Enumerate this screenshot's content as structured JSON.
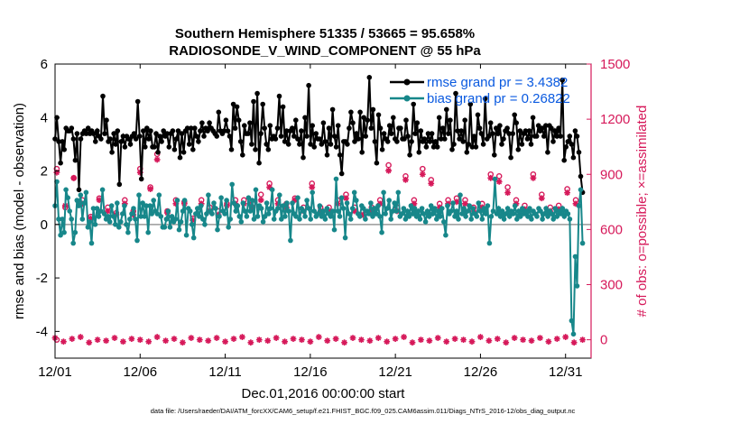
{
  "chart_data": {
    "type": "line",
    "title_line1": "Southern Hemisphere 51335 / 53665 = 95.658%",
    "title_line2": "RADIOSONDE_V_WIND_COMPONENT @ 55 hPa",
    "xlabel": "Dec.01,2016 00:00:00 start",
    "ylabel_left": "rmse and bias (model - observation)",
    "ylabel_right": "# of obs: o=possible; ×=assimilated",
    "footer": "data file: /Users/raeder/DAI/ATM_forcXX/CAM6_setup/f.e21.FHIST_BGC.f09_025.CAM6assim.011/Diags_NTrS_2016-12/obs_diag_output.nc",
    "xlim": [
      0,
      31.5
    ],
    "ylim_left": [
      -5,
      6
    ],
    "ylim_right": [
      -100,
      1500
    ],
    "x_ticks": [
      0,
      5,
      10,
      15,
      20,
      25,
      30
    ],
    "x_tick_labels": [
      "12/01",
      "12/06",
      "12/11",
      "12/16",
      "12/21",
      "12/26",
      "12/31"
    ],
    "y_left_ticks": [
      6,
      4,
      2,
      0,
      -2,
      -4
    ],
    "y_left_tick_labels": [
      "6",
      "4",
      "2",
      "0",
      "-2",
      "-4"
    ],
    "y_right_ticks": [
      1500,
      1200,
      900,
      600,
      300,
      0
    ],
    "y_right_tick_labels": [
      "1500",
      "1200",
      "900",
      "600",
      "300",
      "0"
    ],
    "colors": {
      "rmse": "#000000",
      "bias": "#17878a",
      "obs": "#d6195a",
      "zero": "#9a9a9a"
    },
    "series": [
      {
        "name": "rmse",
        "legend": "rmse grand pr = 3.4382",
        "axis": "left",
        "values": [
          3.2,
          4.0,
          3.1,
          2.3,
          3.1,
          2.8,
          3.6,
          3.5,
          3.5,
          3.6,
          3.2,
          2.4,
          3.4,
          1.3,
          3.2,
          3.4,
          3.5,
          3.4,
          3.6,
          3.4,
          3.5,
          3.4,
          3.1,
          3.5,
          3.3,
          3.2,
          4.8,
          3.4,
          3.9,
          3.1,
          3.2,
          2.7,
          3.4,
          3.0,
          3.5,
          1.5,
          3.1,
          3.3,
          2.9,
          3.3,
          3.2,
          3.0,
          3.3,
          3.4,
          3.2,
          4.6,
          3.3,
          1.7,
          3.5,
          2.9,
          3.6,
          3.2,
          3.5,
          2.9,
          2.9,
          3.4,
          2.7,
          3.3,
          3.1,
          3.5,
          3.3,
          3.4,
          2.9,
          3.4,
          3.5,
          2.8,
          3.2,
          3.5,
          2.5,
          3.4,
          2.7,
          3.5,
          3.6,
          3.0,
          3.6,
          2.8,
          3.6,
          3.3,
          3.1,
          3.5,
          3.8,
          3.3,
          3.6,
          3.5,
          3.8,
          3.6,
          3.5,
          3.4,
          3.3,
          4.2,
          3.5,
          3.4,
          3.5,
          3.9,
          3.5,
          3.3,
          2.8,
          4.5,
          3.6,
          4.4,
          3.9,
          3.1,
          2.6,
          3.7,
          3.4,
          3.4,
          3.8,
          3.0,
          4.6,
          2.8,
          4.9,
          2.3,
          3.4,
          4.5,
          3.6,
          3.0,
          2.8,
          3.7,
          3.2,
          3.3,
          3.2,
          3.6,
          4.8,
          3.3,
          4.4,
          3.1,
          3.5,
          3.0,
          3.5,
          3.6,
          3.3,
          3.9,
          3.2,
          3.0,
          3.5,
          2.5,
          4.0,
          3.3,
          5.2,
          3.0,
          3.7,
          2.9,
          3.4,
          3.2,
          3.2,
          3.0,
          3.8,
          3.1,
          2.6,
          3.6,
          3.0,
          4.3,
          3.3,
          2.9,
          3.7,
          2.6,
          1.9,
          3.1,
          3.1,
          3.0,
          3.6,
          4.2,
          3.8,
          3.1,
          3.4,
          3.2,
          4.2,
          2.7,
          4.0,
          3.3,
          3.9,
          5.5,
          3.6,
          4.3,
          3.1,
          2.3,
          4.1,
          3.6,
          2.8,
          3.4,
          3.2,
          3.1,
          3.7,
          3.4,
          4.0,
          3.2,
          3.1,
          3.6,
          3.6,
          3.2,
          3.2,
          3.9,
          3.3,
          2.6,
          3.1,
          4.5,
          3.4,
          3.8,
          2.7,
          3.5,
          3.1,
          3.2,
          2.9,
          3.4,
          3.1,
          3.4,
          2.9,
          3.1,
          2.9,
          4.0,
          3.2,
          3.6,
          3.2,
          4.3,
          3.4,
          3.9,
          2.8,
          3.0,
          4.9,
          3.5,
          3.2,
          3.5,
          3.1,
          3.9,
          2.7,
          3.0,
          4.5,
          2.9,
          3.3,
          2.9,
          4.1,
          3.6,
          3.4,
          3.0,
          4.7,
          3.2,
          3.3,
          3.8,
          3.4,
          2.6,
          3.6,
          3.4,
          3.7,
          3.0,
          3.2,
          3.5,
          3.6,
          3.4,
          2.5,
          3.4,
          4.1,
          3.8,
          2.8,
          3.5,
          3.0,
          3.4,
          3.5,
          3.2,
          3.5,
          3.0,
          4.0,
          3.3,
          3.3,
          3.7,
          3.5,
          3.6,
          3.3,
          3.7,
          2.7,
          3.7,
          3.6,
          3.1,
          3.5,
          3.3,
          3.6,
          3.3,
          5.4,
          2.4,
          2.9,
          3.1,
          3.3,
          3.0,
          2.5,
          3.5,
          3.3,
          2.7,
          1.8,
          1.2
        ],
        "xstep": 0.5
      },
      {
        "name": "bias",
        "legend": "bias grand pr = 0.26822",
        "axis": "left",
        "values": [
          0.7,
          1.6,
          0.2,
          -0.4,
          0.2,
          -0.3,
          1.3,
          1.0,
          0.5,
          0.2,
          -0.7,
          -0.3,
          0.9,
          0.7,
          1.1,
          0.2,
          0.8,
          1.2,
          -0.1,
          0.1,
          -0.7,
          0.6,
          0.0,
          0.6,
          0.3,
          0.5,
          1.3,
          0.4,
          0.2,
          0.3,
          0.1,
          0.7,
          0.3,
          0.0,
          0.8,
          -0.1,
          0.1,
          0.4,
          0.7,
          0.0,
          -0.3,
          0.2,
          0.4,
          0.6,
          0.2,
          -0.6,
          1.1,
          0.3,
          0.8,
          0.3,
          0.7,
          -0.3,
          0.7,
          0.4,
          0.9,
          0.5,
          0.4,
          1.1,
          0.3,
          -0.1,
          -0.1,
          0.2,
          0.5,
          -0.1,
          0.3,
          0.1,
          0.2,
          0.9,
          -0.2,
          0.1,
          0.5,
          0.9,
          -0.4,
          0.6,
          0.5,
          0.0,
          -0.5,
          0.4,
          0.6,
          0.3,
          0.7,
          0.2,
          0.0,
          0.4,
          1.1,
          0.5,
          0.4,
          0.8,
          0.6,
          -0.2,
          0.3,
          1.0,
          0.5,
          0.4,
          0.9,
          -0.1,
          0.2,
          1.5,
          0.8,
          0.5,
          0.7,
          0.3,
          0.1,
          0.8,
          0.5,
          0.3,
          1.0,
          0.5,
          0.9,
          0.2,
          1.3,
          0.3,
          0.7,
          0.6,
          0.1,
          0.3,
          0.8,
          0.4,
          0.6,
          1.3,
          0.2,
          0.5,
          0.6,
          1.1,
          0.2,
          0.7,
          0.3,
          0.8,
          0.5,
          -0.6,
          0.8,
          0.4,
          0.3,
          1.0,
          0.2,
          0.6,
          0.5,
          0.3,
          0.9,
          0.6,
          0.2,
          1.2,
          0.5,
          0.3,
          0.4,
          0.7,
          0.3,
          0.5,
          0.2,
          0.6,
          0.4,
          0.3,
          0.5,
          -0.2,
          1.7,
          0.5,
          0.3,
          1.0,
          0.6,
          -0.5,
          0.8,
          0.4,
          0.2,
          0.6,
          1.2,
          0.9,
          0.4,
          0.3,
          0.7,
          0.6,
          0.2,
          0.5,
          0.4,
          0.8,
          0.3,
          0.6,
          0.4,
          0.7,
          0.3,
          -0.3,
          1.2,
          0.4,
          0.6,
          0.9,
          0.2,
          0.5,
          0.8,
          0.5,
          1.2,
          0.3,
          0.4,
          0.6,
          0.2,
          0.5,
          0.3,
          0.7,
          0.4,
          0.6,
          0.3,
          0.5,
          0.2,
          0.6,
          0.4,
          0.1,
          0.5,
          0.3,
          0.7,
          0.4,
          0.6,
          0.2,
          0.5,
          0.3,
          0.6,
          0.1,
          -0.4,
          0.7,
          0.4,
          0.5,
          0.8,
          0.3,
          0.5,
          0.2,
          1.1,
          0.4,
          0.6,
          0.3,
          0.5,
          0.7,
          0.2,
          0.6,
          0.4,
          0.3,
          0.8,
          0.5,
          0.2,
          0.6,
          0.4,
          0.7,
          -0.7,
          0.3,
          0.5,
          1.7,
          0.4,
          0.6,
          0.3,
          0.5,
          0.2,
          0.4,
          0.6,
          0.3,
          0.5,
          0.4,
          0.7,
          0.2,
          0.5,
          0.3,
          0.6,
          0.4,
          0.5,
          0.3,
          0.6,
          0.2,
          0.5,
          0.4,
          0.3,
          0.6,
          0.5,
          0.2,
          0.4,
          0.6,
          0.3,
          0.5,
          0.4,
          0.2,
          0.6,
          0.3,
          0.5,
          0.4,
          0.6,
          0.3,
          0.5,
          0.4,
          0.2,
          -3.6,
          -4.1,
          -1.2,
          -2.3,
          0.7,
          1.3,
          -0.7
        ],
        "xstep": 0.5
      },
      {
        "name": "obs_possible",
        "legend": "",
        "axis": "right",
        "marker": "circle",
        "points": [
          [
            0.1,
            0
          ],
          [
            0.1,
            930
          ],
          [
            0.6,
            720
          ],
          [
            1.1,
            880
          ],
          [
            1.6,
            760
          ],
          [
            2.1,
            670
          ],
          [
            2.6,
            770
          ],
          [
            3.1,
            720
          ],
          [
            3.6,
            690
          ],
          [
            4.1,
            760
          ],
          [
            4.6,
            700
          ],
          [
            5.0,
            930
          ],
          [
            5.6,
            830
          ],
          [
            6.0,
            1010
          ],
          [
            6.6,
            700
          ],
          [
            7.1,
            760
          ],
          [
            7.6,
            750
          ],
          [
            8.1,
            660
          ],
          [
            8.6,
            760
          ],
          [
            9.1,
            720
          ],
          [
            9.6,
            700
          ],
          [
            10.1,
            740
          ],
          [
            10.6,
            760
          ],
          [
            11.1,
            760
          ],
          [
            11.6,
            740
          ],
          [
            12.1,
            790
          ],
          [
            12.6,
            850
          ],
          [
            13.1,
            760
          ],
          [
            13.6,
            740
          ],
          [
            14.1,
            770
          ],
          [
            14.6,
            720
          ],
          [
            15.1,
            850
          ],
          [
            15.6,
            720
          ],
          [
            16.1,
            720
          ],
          [
            16.6,
            760
          ],
          [
            17.1,
            790
          ],
          [
            17.6,
            720
          ],
          [
            18.1,
            700
          ],
          [
            18.6,
            720
          ],
          [
            19.1,
            760
          ],
          [
            19.6,
            950
          ],
          [
            20.1,
            720
          ],
          [
            20.6,
            890
          ],
          [
            21.1,
            760
          ],
          [
            21.6,
            930
          ],
          [
            22.1,
            870
          ],
          [
            22.6,
            740
          ],
          [
            23.1,
            760
          ],
          [
            23.6,
            770
          ],
          [
            24.1,
            760
          ],
          [
            24.6,
            720
          ],
          [
            25.1,
            740
          ],
          [
            25.6,
            900
          ],
          [
            26.1,
            890
          ],
          [
            26.6,
            830
          ],
          [
            27.1,
            760
          ],
          [
            27.6,
            730
          ],
          [
            28.1,
            900
          ],
          [
            28.6,
            790
          ],
          [
            29.1,
            720
          ],
          [
            29.6,
            730
          ],
          [
            30.1,
            820
          ],
          [
            30.6,
            760
          ]
        ]
      },
      {
        "name": "obs_assimilated",
        "legend": "",
        "axis": "right",
        "marker": "star",
        "points": [
          [
            0.1,
            910
          ],
          [
            0.6,
            730
          ],
          [
            1.1,
            880
          ],
          [
            1.6,
            740
          ],
          [
            2.1,
            660
          ],
          [
            2.6,
            760
          ],
          [
            3.1,
            700
          ],
          [
            3.6,
            680
          ],
          [
            4.1,
            740
          ],
          [
            4.6,
            680
          ],
          [
            5.0,
            910
          ],
          [
            5.6,
            820
          ],
          [
            6.0,
            980
          ],
          [
            6.6,
            690
          ],
          [
            7.1,
            740
          ],
          [
            7.6,
            740
          ],
          [
            8.1,
            650
          ],
          [
            8.6,
            740
          ],
          [
            9.1,
            700
          ],
          [
            9.6,
            680
          ],
          [
            10.1,
            730
          ],
          [
            10.6,
            740
          ],
          [
            11.1,
            740
          ],
          [
            11.6,
            720
          ],
          [
            12.1,
            760
          ],
          [
            12.6,
            830
          ],
          [
            13.1,
            740
          ],
          [
            13.6,
            720
          ],
          [
            14.1,
            760
          ],
          [
            14.6,
            700
          ],
          [
            15.1,
            830
          ],
          [
            15.6,
            700
          ],
          [
            16.1,
            700
          ],
          [
            16.6,
            740
          ],
          [
            17.1,
            770
          ],
          [
            17.6,
            700
          ],
          [
            18.1,
            680
          ],
          [
            18.6,
            700
          ],
          [
            19.1,
            740
          ],
          [
            19.6,
            920
          ],
          [
            20.1,
            700
          ],
          [
            20.6,
            870
          ],
          [
            21.1,
            740
          ],
          [
            21.6,
            900
          ],
          [
            22.1,
            850
          ],
          [
            22.6,
            720
          ],
          [
            23.1,
            740
          ],
          [
            23.6,
            750
          ],
          [
            24.1,
            740
          ],
          [
            24.6,
            700
          ],
          [
            25.1,
            720
          ],
          [
            25.6,
            880
          ],
          [
            26.1,
            860
          ],
          [
            26.6,
            800
          ],
          [
            27.1,
            740
          ],
          [
            27.6,
            710
          ],
          [
            28.1,
            880
          ],
          [
            28.6,
            770
          ],
          [
            29.1,
            700
          ],
          [
            29.6,
            710
          ],
          [
            30.1,
            800
          ],
          [
            30.6,
            740
          ]
        ]
      }
    ],
    "obs_floor_values": [
      10,
      -10,
      5,
      15,
      -15,
      0,
      -5,
      10,
      -10,
      5,
      0,
      -10,
      15,
      -5,
      5,
      -15,
      10,
      0,
      -5,
      10,
      -10,
      5,
      15,
      -15,
      0,
      -5,
      10,
      -10,
      5,
      0,
      -10,
      15,
      -5,
      5,
      -15,
      10,
      0,
      -5,
      10,
      -10,
      5,
      15,
      -15,
      0,
      -5,
      10,
      -10,
      5,
      0,
      -10,
      15,
      -5,
      5,
      -15,
      10,
      0,
      -5,
      10,
      -10,
      5,
      15,
      -15,
      0
    ]
  }
}
